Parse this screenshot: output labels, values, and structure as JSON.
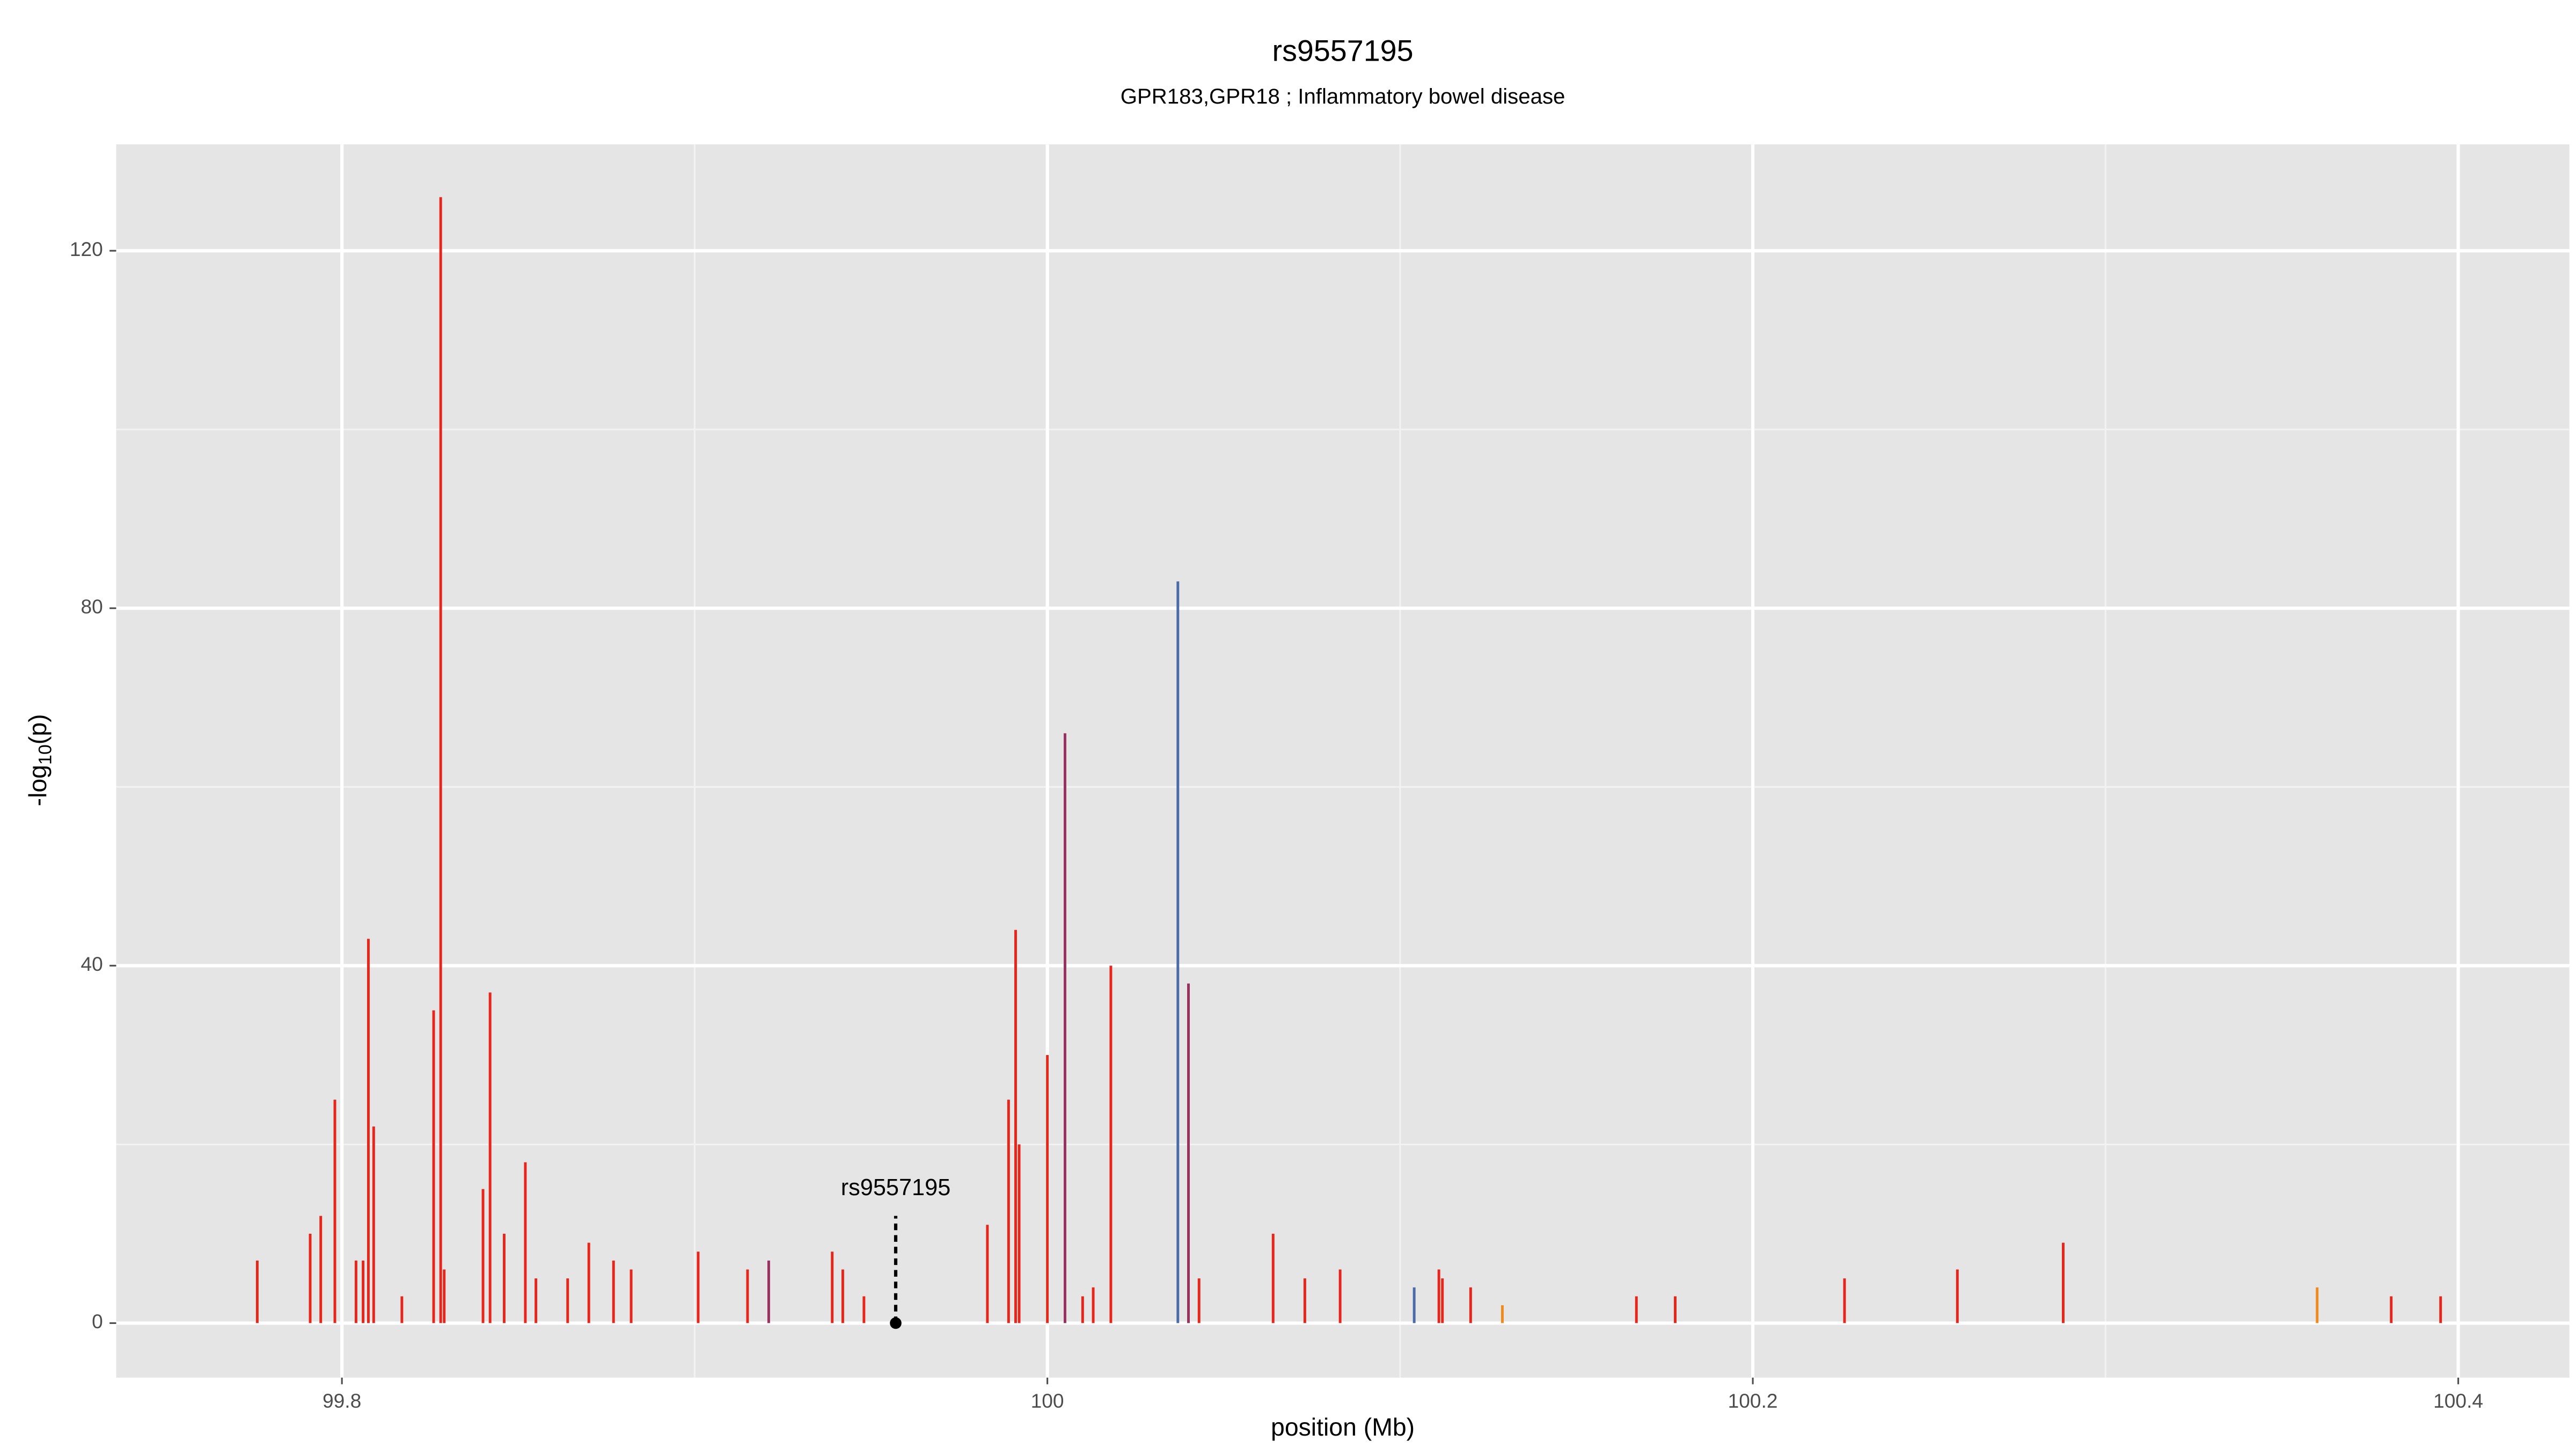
{
  "chart_data": {
    "type": "spike",
    "title": "rs9557195",
    "subtitle": "GPR183,GPR18 ; Inflammatory bowel disease",
    "x_label": "position (Mb)",
    "y_label": {
      "prefix": "-log",
      "sub": "10",
      "suffix": "(p)"
    },
    "xlim": [
      99.736,
      100.4315
    ],
    "ylim": [
      -6.1,
      131.9
    ],
    "xticks": [
      99.8,
      100.0,
      100.2,
      100.4
    ],
    "yticks": [
      0,
      40,
      80,
      120
    ],
    "x_minor_grid": [
      99.9,
      100.1,
      100.3
    ],
    "y_minor_grid": [
      20,
      60,
      100
    ],
    "grid": true,
    "series": [
      {
        "color": "#e8251a",
        "x": [
          99.776,
          99.791,
          99.794,
          99.798,
          99.804,
          99.806,
          99.8075,
          99.809,
          99.817,
          99.826,
          99.828,
          99.829,
          99.84,
          99.842,
          99.846,
          99.852,
          99.855,
          99.864,
          99.87,
          99.877,
          99.882,
          99.901,
          99.915,
          99.939,
          99.942,
          99.948,
          99.983,
          99.989,
          99.991,
          99.992,
          100.0,
          100.01,
          100.013,
          100.018,
          100.043,
          100.064,
          100.073,
          100.083,
          100.111,
          100.112,
          100.12,
          100.167,
          100.178,
          100.226,
          100.258,
          100.288,
          100.381,
          100.395
        ],
        "values": [
          7,
          10,
          12,
          25,
          7,
          7,
          43,
          22,
          3,
          35,
          126,
          6,
          15,
          37,
          10,
          18,
          5,
          5,
          9,
          7,
          6,
          8,
          6,
          8,
          6,
          3,
          11,
          25,
          44,
          20,
          30,
          3,
          4,
          40,
          5,
          10,
          5,
          6,
          6,
          5,
          4,
          3,
          3,
          5,
          6,
          9,
          3,
          3
        ]
      },
      {
        "color": "#9a3060",
        "x": [
          99.921,
          100.005,
          100.04
        ],
        "values": [
          7,
          66,
          38
        ]
      },
      {
        "color": "#4a6aa8",
        "x": [
          100.037,
          100.104
        ],
        "values": [
          83,
          4
        ]
      },
      {
        "color": "#f08a1c",
        "x": [
          100.129,
          100.36
        ],
        "values": [
          2,
          4
        ]
      }
    ],
    "highlight": {
      "label": "rs9557195",
      "x": 99.957,
      "value": 0,
      "line_top": 12,
      "label_y": 15
    }
  }
}
